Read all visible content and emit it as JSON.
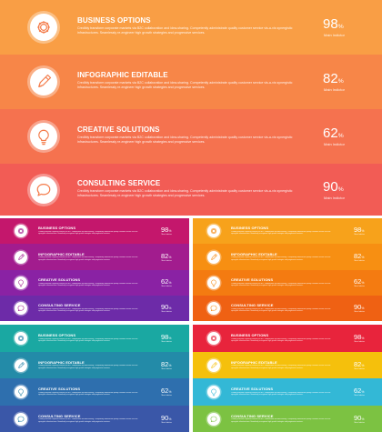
{
  "description_text": "Credibly transform corporate markets via B2C collaboration and idea-sharing. Competently administrate quality customer service vis-a-vis synergistic infrastructures. Seamlessly re-engineer high growth strategies and progressive services.",
  "items": [
    {
      "title": "BUSINESS OPTIONS",
      "value": "98",
      "unit": "%",
      "sub_label": "Main Indictor",
      "icon": "gear-icon"
    },
    {
      "title": "INFOGRAPHIC EDITABLE",
      "value": "82",
      "unit": "%",
      "sub_label": "Main Indictor",
      "icon": "pencil-icon"
    },
    {
      "title": "CREATIVE SOLUTIONS",
      "value": "62",
      "unit": "%",
      "sub_label": "Main Indictor",
      "icon": "lightbulb-icon"
    },
    {
      "title": "CONSULTING SERVICE",
      "value": "90",
      "unit": "%",
      "sub_label": "Main Indictor",
      "icon": "chat-bubble-icon"
    }
  ],
  "panels": [
    {
      "name": "panel-orange-main",
      "colors": [
        "#f99e45",
        "#f78648",
        "#f5724f",
        "#f25c55"
      ],
      "icon_color": "#f47b4a"
    },
    {
      "name": "panel-magenta-purple",
      "colors": [
        "#c4176c",
        "#a21c8e",
        "#8a22a4",
        "#6d2ba8"
      ],
      "icon_color": "#a21c8e"
    },
    {
      "name": "panel-orange-warm",
      "colors": [
        "#f7a21b",
        "#f78f12",
        "#f47b11",
        "#ef6113"
      ],
      "icon_color": "#f58a14"
    },
    {
      "name": "panel-teal-blue",
      "colors": [
        "#1aa8a2",
        "#238ba8",
        "#2e6fae",
        "#3a57a8"
      ],
      "icon_color": "#2583a8"
    },
    {
      "name": "panel-multicolor",
      "colors": [
        "#e8243c",
        "#f5c00c",
        "#33b8d6",
        "#7cc242"
      ],
      "icon_color": "#e8243c"
    }
  ]
}
